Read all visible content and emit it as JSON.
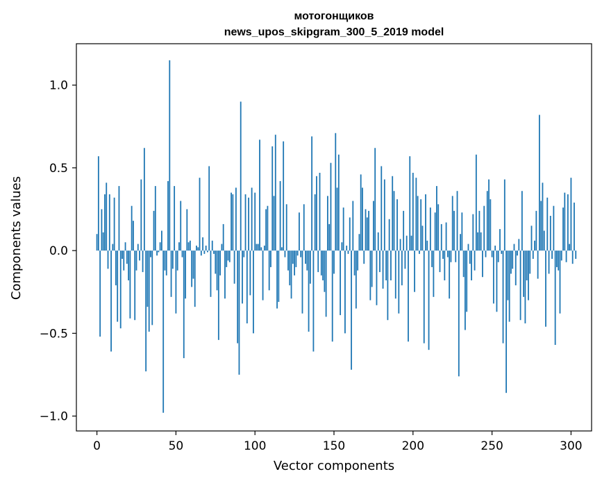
{
  "chart_data": {
    "type": "bar",
    "title_line1": "мотогонщиков",
    "title_line2": "news_upos_skipgram_300_5_2019 model",
    "xlabel": "Vector components",
    "ylabel": "Components values",
    "xlim": [
      -13,
      313
    ],
    "ylim": [
      -1.09,
      1.25
    ],
    "xticks": [
      0,
      50,
      100,
      150,
      200,
      250,
      300
    ],
    "xtick_labels": [
      "0",
      "50",
      "100",
      "150",
      "200",
      "250",
      "300"
    ],
    "yticks": [
      -1.0,
      -0.5,
      0.0,
      0.5,
      1.0
    ],
    "ytick_labels": [
      "−1.0",
      "−0.5",
      "0.0",
      "0.5",
      "1.0"
    ],
    "bar_color": "#1f77b4",
    "grid": false,
    "values": [
      0.1,
      0.57,
      -0.52,
      0.25,
      0.11,
      0.34,
      0.41,
      -0.11,
      0.34,
      -0.61,
      0.04,
      0.32,
      -0.21,
      -0.43,
      0.39,
      -0.47,
      -0.05,
      -0.12,
      0.05,
      -0.08,
      -0.18,
      -0.41,
      0.27,
      0.18,
      -0.42,
      -0.12,
      0.04,
      -0.06,
      0.43,
      -0.13,
      0.62,
      -0.73,
      -0.34,
      -0.49,
      -0.04,
      -0.45,
      0.24,
      0.39,
      -0.03,
      -0.01,
      0.05,
      0.12,
      -0.98,
      -0.12,
      -0.15,
      0.42,
      1.15,
      -0.28,
      -0.11,
      0.39,
      -0.38,
      -0.12,
      0.05,
      0.3,
      -0.04,
      -0.65,
      -0.29,
      0.25,
      0.05,
      0.06,
      -0.22,
      -0.17,
      -0.34,
      0.03,
      0.02,
      0.44,
      -0.03,
      0.08,
      -0.02,
      0.03,
      -0.01,
      0.51,
      -0.28,
      0.06,
      -0.02,
      -0.14,
      -0.24,
      -0.54,
      -0.15,
      0.04,
      0.16,
      -0.29,
      -0.1,
      -0.06,
      -0.07,
      0.35,
      0.34,
      -0.2,
      0.38,
      -0.56,
      -0.75,
      0.9,
      -0.32,
      -0.04,
      0.34,
      -0.44,
      0.32,
      -0.27,
      0.38,
      -0.5,
      0.35,
      0.04,
      0.04,
      0.67,
      0.02,
      -0.3,
      0.03,
      0.25,
      0.27,
      -0.24,
      -0.1,
      0.63,
      0.33,
      0.7,
      -0.35,
      -0.31,
      0.42,
      0.02,
      0.66,
      -0.04,
      0.28,
      -0.12,
      -0.21,
      -0.29,
      -0.08,
      -0.15,
      -0.1,
      -0.03,
      0.23,
      -0.04,
      -0.38,
      0.28,
      -0.08,
      -0.12,
      -0.49,
      -0.2,
      0.69,
      -0.61,
      0.34,
      0.45,
      -0.13,
      0.47,
      -0.15,
      -0.18,
      -0.25,
      -0.4,
      0.33,
      0.16,
      0.53,
      -0.55,
      -0.14,
      0.71,
      0.38,
      0.58,
      -0.39,
      0.05,
      0.26,
      -0.5,
      0.03,
      -0.02,
      0.2,
      -0.72,
      0.3,
      -0.15,
      -0.35,
      -0.12,
      0.1,
      0.46,
      0.38,
      -0.08,
      0.25,
      0.2,
      0.24,
      -0.3,
      -0.22,
      0.3,
      0.62,
      -0.33,
      0.11,
      -0.13,
      0.51,
      -0.23,
      0.43,
      -0.18,
      -0.42,
      0.19,
      -0.18,
      0.45,
      0.36,
      -0.29,
      0.31,
      -0.38,
      0.07,
      -0.21,
      0.24,
      -0.11,
      0.09,
      -0.55,
      0.57,
      0.09,
      0.47,
      -0.25,
      0.44,
      0.33,
      -0.02,
      0.31,
      0.15,
      -0.56,
      0.34,
      0.06,
      -0.6,
      0.26,
      -0.1,
      -0.28,
      0.23,
      0.39,
      0.28,
      -0.13,
      0.16,
      -0.05,
      -0.18,
      0.17,
      -0.04,
      -0.29,
      -0.07,
      0.33,
      0.24,
      -0.07,
      0.36,
      -0.76,
      0.1,
      0.23,
      -0.16,
      -0.48,
      -0.37,
      0.04,
      -0.08,
      -0.18,
      0.22,
      -0.12,
      0.58,
      0.11,
      0.24,
      0.11,
      -0.16,
      0.27,
      -0.04,
      0.36,
      0.43,
      0.31,
      -0.04,
      -0.32,
      0.03,
      -0.37,
      -0.07,
      0.13,
      -0.02,
      -0.56,
      0.43,
      -0.86,
      -0.3,
      -0.43,
      -0.14,
      -0.11,
      0.04,
      -0.21,
      -0.03,
      0.07,
      -0.42,
      0.36,
      -0.28,
      -0.44,
      -0.18,
      -0.3,
      -0.14,
      0.15,
      -0.05,
      0.06,
      0.24,
      -0.17,
      0.82,
      0.3,
      0.41,
      0.12,
      -0.46,
      0.32,
      -0.14,
      0.21,
      -0.05,
      0.27,
      -0.57,
      -0.1,
      -0.12,
      -0.38,
      -0.06,
      0.26,
      0.35,
      -0.07,
      0.34,
      0.04,
      0.44,
      -0.08,
      0.29,
      -0.05
    ]
  }
}
